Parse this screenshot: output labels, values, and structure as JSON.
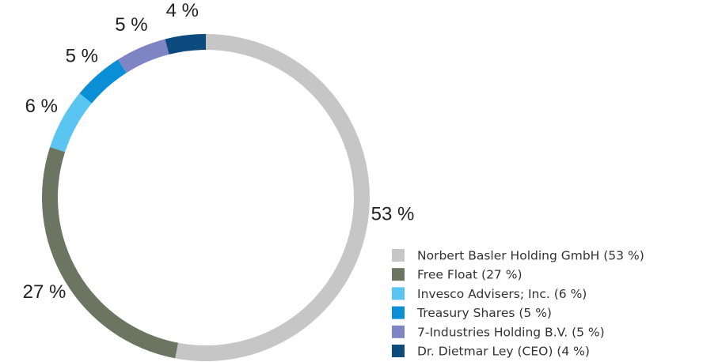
{
  "chart_data": {
    "type": "pie",
    "donut": true,
    "categories": [
      "Norbert Basler Holding GmbH (53 %)",
      "Free Float (27 %)",
      "Invesco Advisers; Inc. (6 %)",
      "Treasury Shares (5 %)",
      "7-Industries Holding B.V. (5 %)",
      "Dr. Dietmar Ley (CEO) (4 %)"
    ],
    "values": [
      53,
      27,
      6,
      5,
      5,
      4
    ],
    "value_labels": [
      "53 %",
      "27 %",
      "6 %",
      "5 %",
      "5 %",
      "4 %"
    ],
    "colors": [
      "#c6c6c6",
      "#6b7562",
      "#5bc5f2",
      "#0a8fd6",
      "#7f85c4",
      "#0d4a7d"
    ],
    "legend": "lower right"
  }
}
